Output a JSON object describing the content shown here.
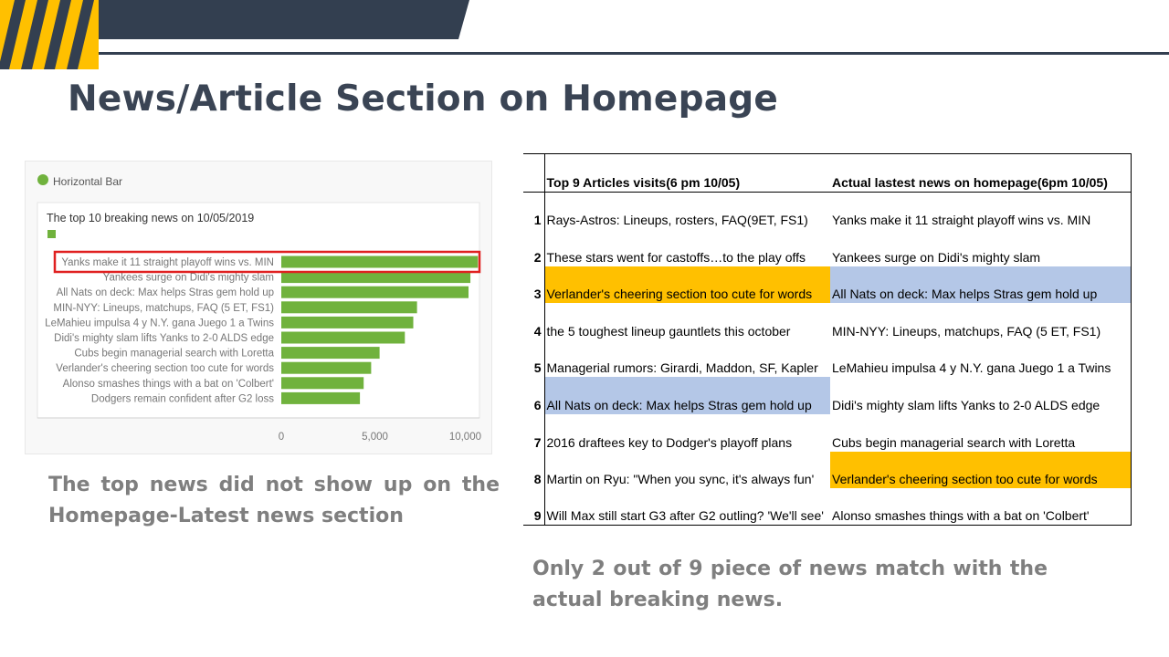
{
  "slide": {
    "title": "News/Article Section on Homepage",
    "caption_left": "The top news did not show up on the Homepage-Latest news section",
    "caption_right": "Only 2 out of 9 piece of news match with the actual breaking news.",
    "colors": {
      "header_dark": "#333f50",
      "accent_yellow": "#ffc000",
      "title_text": "#3a4454",
      "caption_text": "#7f7f7f",
      "bar_green": "#70b23d",
      "highlight_box": "#e02020",
      "match_gold": "#ffc000",
      "match_blue": "#b4c7e7"
    }
  },
  "chart_data": {
    "type": "bar",
    "orientation": "horizontal",
    "widget_label": "Horizontal Bar",
    "title": "The top 10 breaking news on 10/05/2019",
    "categories": [
      "Yanks make it 11 straight playoff wins vs. MIN",
      "Yankees surge on Didi's mighty slam",
      "All Nats on deck: Max helps Stras gem hold up",
      "MIN-NYY: Lineups, matchups, FAQ (5 ET, FS1)",
      "LeMahieu impulsa 4 y N.Y. gana Juego 1 a Twins",
      "Didi's mighty slam lifts Yanks to 2-0 ALDS edge",
      "Cubs begin managerial search with Loretta",
      "Verlander's cheering section too cute for words",
      "Alonso smashes things with a bat on 'Colbert'",
      "Dodgers remain confident after G2 loss"
    ],
    "values": [
      10500,
      10100,
      10000,
      7250,
      7050,
      6600,
      5250,
      4800,
      4400,
      4200
    ],
    "xlim": [
      0,
      10000
    ],
    "x_ticks": [
      "0",
      "5,000",
      "10,000"
    ],
    "highlighted_category": "Yanks make it 11 straight playoff wins vs. MIN",
    "bar_color": "#70b23d",
    "grid": false,
    "legend": "top-left"
  },
  "table": {
    "headers": [
      "",
      "Top 9 Articles visits(6 pm 10/05)",
      "Actual lastest news on homepage(6pm 10/05)"
    ],
    "rows": [
      {
        "num": "1",
        "left": "Rays-Astros: Lineups, rosters, FAQ(9ET, FS1)",
        "right": "Yanks make it 11 straight playoff wins vs. MIN",
        "left_hl": "",
        "right_hl": ""
      },
      {
        "num": "2",
        "left": "These stars went for castoffs…to the play offs",
        "right": "Yankees surge on Didi's mighty slam",
        "left_hl": "",
        "right_hl": ""
      },
      {
        "num": "3",
        "left": "Verlander's cheering section too cute for words",
        "right": "All Nats on deck: Max helps Stras gem hold up",
        "left_hl": "gold",
        "right_hl": "blue"
      },
      {
        "num": "4",
        "left": "the 5 toughest lineup gauntlets this october",
        "right": "MIN-NYY:  Lineups, matchups, FAQ (5 ET, FS1)",
        "left_hl": "",
        "right_hl": ""
      },
      {
        "num": "5",
        "left": "Managerial rumors: Girardi, Maddon, SF, Kapler",
        "right": "LeMahieu impulsa 4 y N.Y. gana Juego 1 a Twins",
        "left_hl": "",
        "right_hl": ""
      },
      {
        "num": "6",
        "left": "All Nats on deck: Max helps Stras gem hold up",
        "right": "Didi's mighty slam lifts Yanks to 2-0 ALDS edge",
        "left_hl": "blue",
        "right_hl": ""
      },
      {
        "num": "7",
        "left": "2016 draftees key to Dodger's playoff plans",
        "right": "Cubs begin managerial search with Loretta",
        "left_hl": "",
        "right_hl": ""
      },
      {
        "num": "8",
        "left": "Martin on Ryu: \"When you sync, it's always fun'",
        "right": "Verlander's cheering section too cute for words",
        "left_hl": "",
        "right_hl": "gold"
      },
      {
        "num": "9",
        "left": "Will Max still start G3 after G2 outling? 'We'll see'",
        "right": "Alonso smashes things with a bat on 'Colbert'",
        "left_hl": "",
        "right_hl": ""
      }
    ]
  }
}
